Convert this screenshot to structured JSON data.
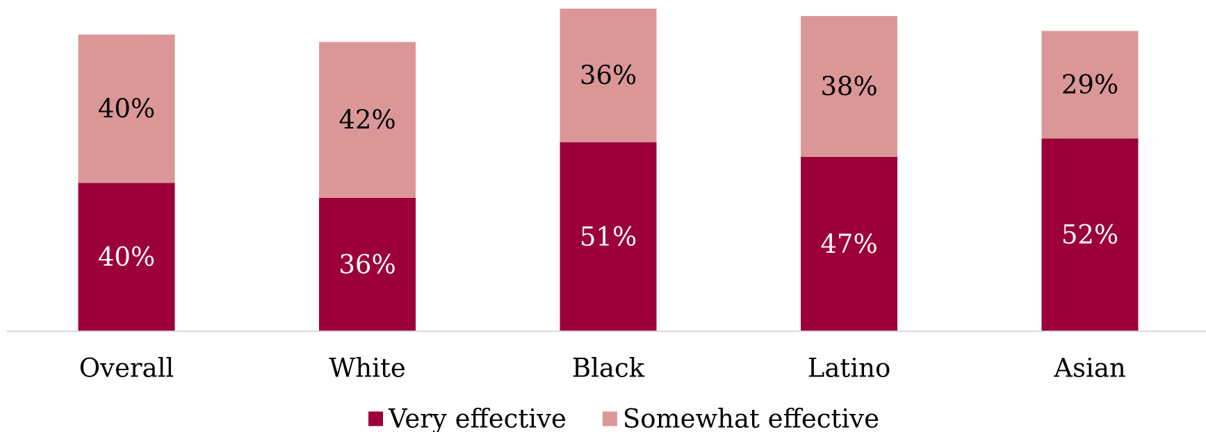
{
  "chart_data": {
    "type": "bar",
    "stacked": true,
    "categories": [
      "Overall",
      "White",
      "Black",
      "Latino",
      "Asian"
    ],
    "series": [
      {
        "name": "Very effective",
        "values": [
          40,
          36,
          51,
          47,
          52
        ],
        "labels": [
          "40%",
          "36%",
          "51%",
          "47%",
          "52%"
        ],
        "color": "#9b0038",
        "label_color": "#ffffff"
      },
      {
        "name": "Somewhat effective",
        "values": [
          40,
          42,
          36,
          38,
          29
        ],
        "labels": [
          "40%",
          "42%",
          "36%",
          "38%",
          "29%"
        ],
        "color": "#db9797",
        "label_color": "#000000"
      }
    ],
    "ylim": [
      0,
      88
    ],
    "grid": false,
    "legend": "bottom-center",
    "axis_color": "#d9d9d9"
  }
}
